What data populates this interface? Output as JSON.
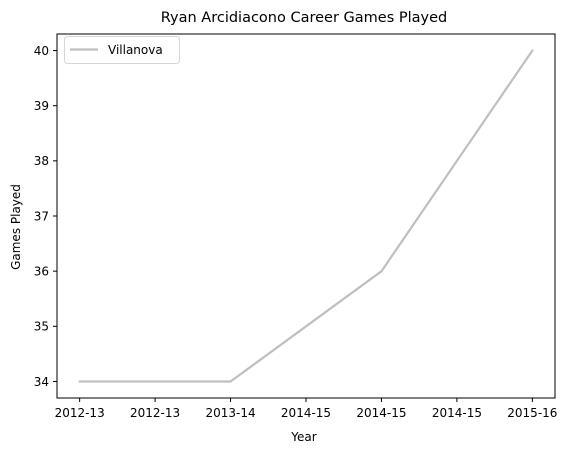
{
  "chart_data": {
    "type": "line",
    "title": "Ryan Arcidiacono Career Games Played",
    "xlabel": "Year",
    "ylabel": "Games Played",
    "x_tick_labels": [
      "2012-13",
      "2012-13",
      "2013-14",
      "2014-15",
      "2014-15",
      "2014-15",
      "2015-16"
    ],
    "x_tick_positions": [
      0,
      0.5,
      1,
      1.5,
      2,
      2.5,
      3
    ],
    "y_ticks": [
      34,
      35,
      36,
      37,
      38,
      39,
      40
    ],
    "ylim": [
      33.7,
      40.3
    ],
    "xlim": [
      -0.15,
      3.15
    ],
    "grid": false,
    "legend_position": "upper-left",
    "series": [
      {
        "name": "Villanova",
        "color": "#bfbfbf",
        "x": [
          0,
          1,
          2,
          3
        ],
        "labels": [
          "2012-13",
          "2013-14",
          "2014-15",
          "2015-16"
        ],
        "values": [
          34,
          34,
          36,
          40
        ]
      }
    ]
  }
}
